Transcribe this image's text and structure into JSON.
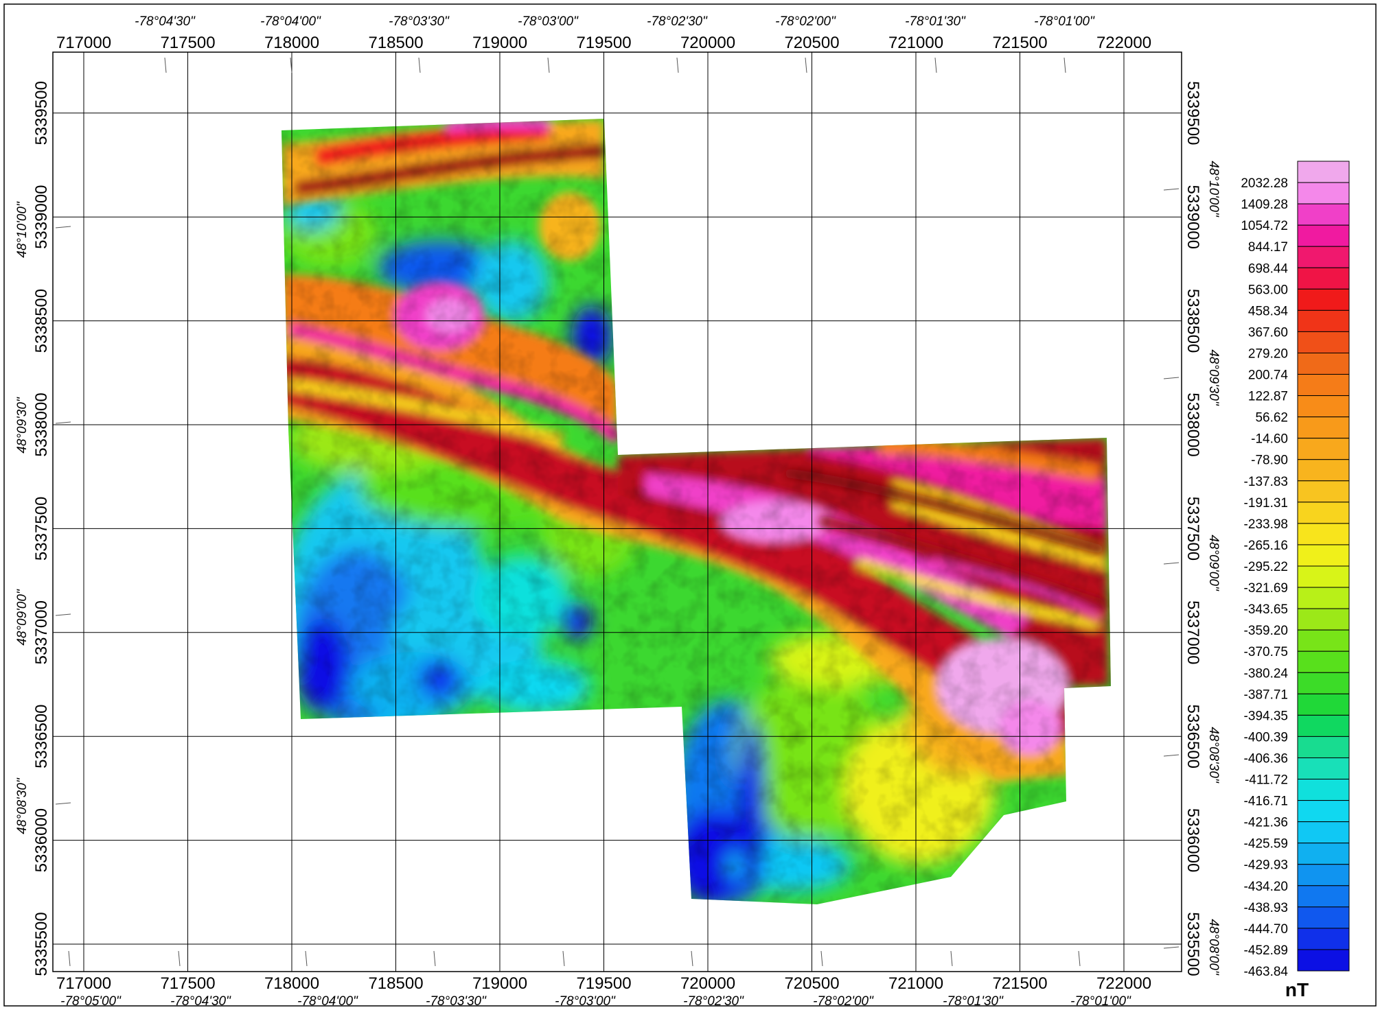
{
  "map": {
    "easting_ticks": [
      "717000",
      "717500",
      "718000",
      "718500",
      "719000",
      "719500",
      "720000",
      "720500",
      "721000",
      "721500",
      "722000"
    ],
    "northing_ticks": [
      "5335500",
      "5336000",
      "5336500",
      "5337000",
      "5337500",
      "5338000",
      "5338500",
      "5339000",
      "5339500"
    ],
    "longitude_top": [
      "-78°04'30\"",
      "-78°04'00\"",
      "-78°03'30\"",
      "-78°03'00\"",
      "-78°02'30\"",
      "-78°02'00\"",
      "-78°01'30\"",
      "-78°01'00\""
    ],
    "longitude_bottom": [
      "-78°05'00\"",
      "-78°04'30\"",
      "-78°04'00\"",
      "-78°03'30\"",
      "-78°03'00\"",
      "-78°02'30\"",
      "-78°02'00\"",
      "-78°01'30\"",
      "-78°01'00\""
    ],
    "latitude_left": [
      "48°08'30\"",
      "48°09'00\"",
      "48°09'30\"",
      "48°10'00\""
    ],
    "latitude_right": [
      "48°08'00\"",
      "48°08'30\"",
      "48°09'00\"",
      "48°09'30\"",
      "48°10'00\""
    ]
  },
  "legend": {
    "unit": "nT",
    "labels": [
      "2032.28",
      "1409.28",
      "1054.72",
      "844.17",
      "698.44",
      "563.00",
      "458.34",
      "367.60",
      "279.20",
      "200.74",
      "122.87",
      "56.62",
      "-14.60",
      "-78.90",
      "-137.83",
      "-191.31",
      "-233.98",
      "-265.16",
      "-295.22",
      "-321.69",
      "-343.65",
      "-359.20",
      "-370.75",
      "-380.24",
      "-387.71",
      "-394.35",
      "-400.39",
      "-406.36",
      "-411.72",
      "-416.71",
      "-421.36",
      "-425.59",
      "-429.93",
      "-434.20",
      "-438.93",
      "-444.70",
      "-452.89",
      "-463.84"
    ],
    "colors": [
      "#f0a8ec",
      "#f488ea",
      "#f040c8",
      "#f01aa0",
      "#f0186e",
      "#f01446",
      "#f01a1a",
      "#f03418",
      "#f05018",
      "#f06a18",
      "#f57c18",
      "#f88c18",
      "#f89a1a",
      "#f8a81c",
      "#f8b41e",
      "#f8c420",
      "#f8d41e",
      "#f8e41c",
      "#f0f01a",
      "#d8f418",
      "#b8f018",
      "#9ce818",
      "#78e418",
      "#58e01c",
      "#3cdc28",
      "#20d838",
      "#10d860",
      "#18dc90",
      "#18e0b8",
      "#10e0dc",
      "#10d8f0",
      "#10c8f4",
      "#10b0f0",
      "#1094f0",
      "#1078f0",
      "#1058ee",
      "#1030ea",
      "#0c10e4"
    ]
  }
}
